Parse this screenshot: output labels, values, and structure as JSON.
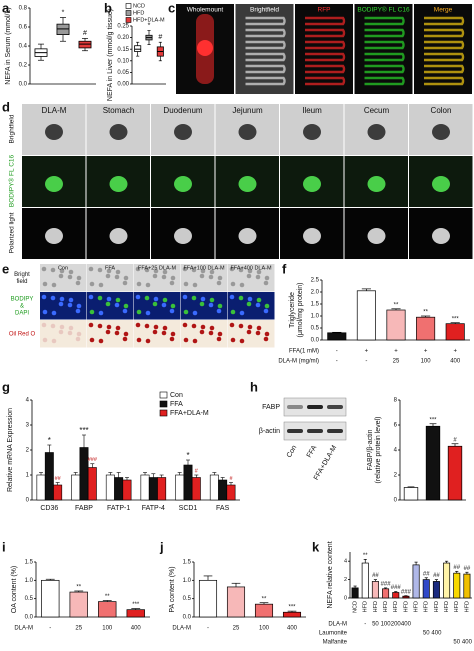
{
  "panels": {
    "a": {
      "letter": "a",
      "ylabel": "NEFA in Serum (mmol/L)",
      "ylim": [
        0,
        0.8
      ],
      "yticks": [
        {
          "value": 0,
          "label": "0.0"
        },
        {
          "value": 0.2,
          "label": "0.2"
        },
        {
          "value": 0.4,
          "label": "0.4"
        },
        {
          "value": 0.6,
          "label": "0.6"
        },
        {
          "value": 0.8,
          "label": "0.8"
        }
      ],
      "colors": [
        "#ffffff",
        "#9a9a9a",
        "#e23a3a"
      ],
      "boxes": [
        [
          0.25,
          0.29,
          0.33,
          0.37,
          0.42
        ],
        [
          0.45,
          0.52,
          0.58,
          0.63,
          0.7
        ],
        [
          0.35,
          0.38,
          0.42,
          0.45,
          0.48
        ]
      ],
      "annotations": [
        null,
        "*",
        "#"
      ]
    },
    "b": {
      "letter": "b",
      "ylabel": "NEFA in Liver (mmol/g tissue)",
      "ylim": [
        0,
        0.25
      ],
      "yticks": [
        {
          "value": 0,
          "label": "0.00"
        },
        {
          "value": 0.05,
          "label": "0.05"
        },
        {
          "value": 0.1,
          "label": "0.10"
        },
        {
          "value": 0.15,
          "label": "0.15"
        },
        {
          "value": 0.2,
          "label": "0.20"
        },
        {
          "value": 0.25,
          "label": "0.25"
        }
      ],
      "colors": [
        "#ffffff",
        "#9a9a9a",
        "#e23a3a"
      ],
      "boxes": [
        [
          0.12,
          0.14,
          0.15,
          0.165,
          0.18
        ],
        [
          0.17,
          0.19,
          0.2,
          0.21,
          0.23
        ],
        [
          0.1,
          0.12,
          0.14,
          0.16,
          0.18
        ]
      ],
      "annotations": [
        null,
        "*",
        "#"
      ],
      "legend": [
        "NCD",
        "HFD",
        "HFD+DLA-M"
      ]
    },
    "c": {
      "letter": "c",
      "images": [
        {
          "label": "Wholemount",
          "color": "#ffffff"
        },
        {
          "label": "Brightfield",
          "color": "#ffffff"
        },
        {
          "label": "RFP",
          "color": "#ff3030"
        },
        {
          "label": "BODIPY® FL C16",
          "color": "#33dd33"
        },
        {
          "label": "Merge",
          "color": "#ffb020"
        }
      ]
    },
    "d": {
      "letter": "d",
      "columns": [
        "DLA-M",
        "Stomach",
        "Duodenum",
        "Jejunum",
        "Ileum",
        "Cecum",
        "Colon"
      ],
      "rows": [
        "Brightfield",
        "BODIPY® FL C16",
        "Polarized light"
      ]
    },
    "e": {
      "letter": "e",
      "columns": [
        "Con",
        "FFA",
        "FFA+25 DLA-M",
        "FFA+100 DLA-M",
        "FFA+400 DLA-M"
      ],
      "rows": [
        [
          "Bright",
          "field"
        ],
        [
          "BODIPY",
          "&",
          "DAPI"
        ],
        [
          "Oil Red O"
        ]
      ]
    },
    "f": {
      "letter": "f",
      "ylabel": [
        "Triglyceride",
        "(μmol/mg protein)"
      ],
      "ylim": [
        0,
        2.5
      ],
      "yticks": [
        {
          "value": 0,
          "label": "0.0"
        },
        {
          "value": 0.5,
          "label": "0.5"
        },
        {
          "value": 1,
          "label": "1.0"
        },
        {
          "value": 1.5,
          "label": "1.5"
        },
        {
          "value": 2,
          "label": "2.0"
        },
        {
          "value": 2.5,
          "label": "2.5"
        }
      ],
      "values": [
        0.3,
        2.05,
        1.25,
        0.95,
        0.68
      ],
      "errors": [
        0.02,
        0.08,
        0.05,
        0.05,
        0.04
      ],
      "colors": [
        "#111111",
        "#ffffff",
        "#f7b8b8",
        "#f07070",
        "#e02020"
      ],
      "annotations": [
        null,
        null,
        "**",
        "**",
        "***"
      ],
      "table": [
        {
          "label": "FFA(1 mM)",
          "cells": [
            "-",
            "+",
            "+",
            "+",
            "+"
          ]
        },
        {
          "label": "DLA-M (mg/ml)",
          "cells": [
            "-",
            "-",
            "25",
            "100",
            "400"
          ]
        }
      ]
    },
    "g": {
      "letter": "g",
      "ylabel": "Relative mRNA Expression",
      "ylim": [
        0,
        4
      ],
      "yticks": [
        0,
        1,
        2,
        3,
        4
      ],
      "categories": [
        "CD36",
        "FABP",
        "FATP-1",
        "FATP-4",
        "SCD1",
        "FAS"
      ],
      "series": [
        {
          "name": "Con",
          "color": "#ffffff",
          "values": [
            1,
            1,
            1,
            1,
            1,
            1
          ],
          "errors": [
            0.1,
            0.1,
            0.1,
            0.1,
            0.1,
            0.1
          ],
          "annotations": [
            null,
            null,
            null,
            null,
            null,
            null
          ]
        },
        {
          "name": "FFA",
          "color": "#111111",
          "values": [
            1.9,
            2.1,
            0.9,
            0.9,
            1.4,
            0.8
          ],
          "errors": [
            0.3,
            0.5,
            0.2,
            0.15,
            0.2,
            0.1
          ],
          "annotations": [
            "*",
            "***",
            null,
            null,
            "*",
            null
          ]
        },
        {
          "name": "FFA+DLA-M",
          "color": "#e02020",
          "values": [
            0.6,
            1.3,
            0.8,
            0.9,
            0.9,
            0.6
          ],
          "errors": [
            0.1,
            0.15,
            0.1,
            0.1,
            0.1,
            0.1
          ],
          "annotations": [
            "##",
            "###",
            null,
            null,
            "#",
            "#"
          ]
        }
      ]
    },
    "h": {
      "letter": "h",
      "blot_rows": [
        "FABP",
        "β-actin"
      ],
      "lanes": [
        "Con",
        "FFA",
        "FFA+DLA-M"
      ],
      "ylabel": [
        "FABP/β-actin",
        "(relative protein level)"
      ],
      "ylim": [
        0,
        8
      ],
      "yticks": [
        0,
        2,
        4,
        6,
        8
      ],
      "values": [
        1,
        5.9,
        4.3
      ],
      "errors": [
        0.05,
        0.2,
        0.2
      ],
      "colors": [
        "#ffffff",
        "#111111",
        "#e02020"
      ],
      "annotations": [
        null,
        "***",
        "#"
      ]
    },
    "i": {
      "letter": "i",
      "ylabel": "OA content (%)",
      "ylim": [
        0,
        1.5
      ],
      "yticks": [
        {
          "value": 0,
          "label": "0.0"
        },
        {
          "value": 0.5,
          "label": "0.5"
        },
        {
          "value": 1,
          "label": "1.0"
        },
        {
          "value": 1.5,
          "label": "1.5"
        }
      ],
      "values": [
        1.0,
        0.68,
        0.42,
        0.2
      ],
      "errors": [
        0.03,
        0.03,
        0.03,
        0.03
      ],
      "colors": [
        "#ffffff",
        "#f7b8b8",
        "#f07070",
        "#e02020"
      ],
      "annotations": [
        null,
        "**",
        "**",
        "***"
      ],
      "table": [
        {
          "label": "DLA-M",
          "cells": [
            "-",
            "25",
            "100",
            "400"
          ]
        }
      ]
    },
    "j": {
      "letter": "j",
      "ylabel": "PA content (%)",
      "ylim": [
        0,
        1.5
      ],
      "yticks": [
        {
          "value": 0,
          "label": "0.0"
        },
        {
          "value": 0.5,
          "label": "0.5"
        },
        {
          "value": 1,
          "label": "1.0"
        },
        {
          "value": 1.5,
          "label": "1.5"
        }
      ],
      "values": [
        1.0,
        0.82,
        0.35,
        0.13
      ],
      "errors": [
        0.12,
        0.1,
        0.04,
        0.03
      ],
      "colors": [
        "#ffffff",
        "#f7b8b8",
        "#f07070",
        "#e02020"
      ],
      "annotations": [
        null,
        null,
        "**",
        "***"
      ],
      "table": [
        {
          "label": "DLA-M",
          "cells": [
            "-",
            "25",
            "100",
            "400"
          ]
        }
      ]
    },
    "k": {
      "letter": "k",
      "ylabel": "NEFA relative content",
      "ylim": [
        0,
        5
      ],
      "yticks": [
        0,
        2,
        4
      ],
      "categories": [
        "NCD",
        "HFD",
        "HFD",
        "HFD",
        "HFD",
        "HFD",
        "HFD",
        "HFD",
        "HFD",
        "HFD",
        "HFD",
        "HFD"
      ],
      "values": [
        1.1,
        3.8,
        1.8,
        1.0,
        0.6,
        0.2,
        3.6,
        2.0,
        1.8,
        3.8,
        2.7,
        2.6
      ],
      "errors": [
        0.2,
        0.4,
        0.2,
        0.1,
        0.1,
        0.05,
        0.3,
        0.2,
        0.2,
        0.2,
        0.2,
        0.2
      ],
      "colors": [
        "#111111",
        "#ffffff",
        "#f7b8b8",
        "#f07070",
        "#e02020",
        "#a01010",
        "#b0b8e8",
        "#3048c8",
        "#1a2a80",
        "#fff3a8",
        "#f8d800",
        "#f0c000"
      ],
      "annotations": [
        null,
        "**",
        "##",
        "###",
        "###",
        "###",
        null,
        "##",
        "##",
        null,
        "##",
        "##"
      ],
      "table": [
        {
          "label": "DLA-M",
          "cells": [
            null,
            "-",
            "50",
            "100",
            "200",
            "400",
            null,
            null,
            null,
            null,
            null,
            null
          ]
        },
        {
          "label": "Laumonite",
          "cells": [
            null,
            null,
            null,
            null,
            null,
            null,
            null,
            "50",
            "400",
            null,
            null,
            null
          ]
        },
        {
          "label": "Malfanite",
          "cells": [
            null,
            null,
            null,
            null,
            null,
            null,
            null,
            null,
            null,
            null,
            "50",
            "400"
          ]
        }
      ]
    }
  }
}
